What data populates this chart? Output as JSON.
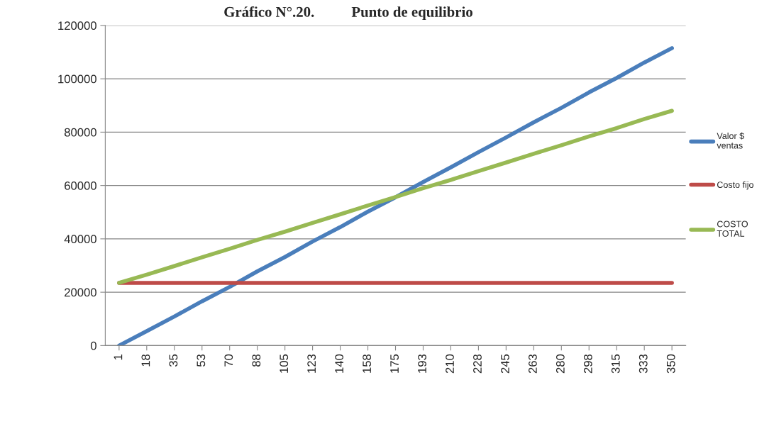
{
  "chart_data": {
    "type": "line",
    "title": "Gráfico N°.20.          Punto de equilibrio",
    "categories": [
      "1",
      "18",
      "35",
      "53",
      "70",
      "88",
      "105",
      "123",
      "140",
      "158",
      "175",
      "193",
      "210",
      "228",
      "245",
      "263",
      "280",
      "298",
      "315",
      "333",
      "350"
    ],
    "series": [
      {
        "name": "Valor $\nventas",
        "color": "#4a7ebb",
        "values": [
          0,
          5400,
          10900,
          16600,
          22000,
          27800,
          33200,
          39000,
          44400,
          50200,
          55600,
          61300,
          66800,
          72500,
          78000,
          83700,
          89100,
          94900,
          100300,
          106100,
          111500
        ]
      },
      {
        "name": "Costo fijo",
        "color": "#be4b48",
        "values": [
          23500,
          23500,
          23500,
          23500,
          23500,
          23500,
          23500,
          23500,
          23500,
          23500,
          23500,
          23500,
          23500,
          23500,
          23500,
          23500,
          23500,
          23500,
          23500,
          23500,
          23500
        ]
      },
      {
        "name": "COSTO\nTOTAL",
        "color": "#98b954",
        "values": [
          23500,
          26600,
          29800,
          33100,
          36300,
          39600,
          42700,
          46000,
          49200,
          52500,
          55700,
          59000,
          62100,
          65400,
          68600,
          71900,
          75100,
          78400,
          81500,
          84900,
          88000
        ]
      }
    ],
    "ylim": [
      0,
      120000
    ],
    "yticks": [
      0,
      20000,
      40000,
      60000,
      80000,
      100000,
      120000
    ],
    "grid": "y",
    "legend": "right",
    "marker": "none",
    "line_style": "solid"
  }
}
